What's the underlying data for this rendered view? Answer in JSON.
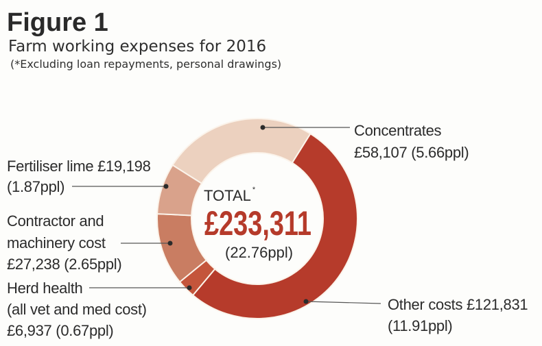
{
  "chart_data": {
    "type": "pie",
    "variant": "donut",
    "title": "Figure 1",
    "subtitle": "Farm working expenses for 2016",
    "note": "(*Excluding loan repayments, personal drawings)",
    "center": {
      "label": "TOTAL",
      "marker": "*",
      "value": "£233,311",
      "sub": "(22.76ppl)"
    },
    "total": 233311,
    "slices": [
      {
        "name": "Other costs",
        "value": 121831,
        "ppl": 11.91,
        "color": "#b63b2b",
        "lines": [
          "Other costs £121,831",
          "(11.91ppl)"
        ]
      },
      {
        "name": "Herd health",
        "value": 6937,
        "ppl": 0.67,
        "color": "#c4553b",
        "lines": [
          "Herd health",
          "(all vet and med cost)",
          "£6,937 (0.67ppl)"
        ]
      },
      {
        "name": "Contractor and machinery cost",
        "value": 27238,
        "ppl": 2.65,
        "color": "#c97d62",
        "lines": [
          "Contractor and",
          "machinery cost",
          "£27,238 (2.65ppl)"
        ]
      },
      {
        "name": "Fertiliser lime",
        "value": 19198,
        "ppl": 1.87,
        "color": "#d9a28b",
        "lines": [
          "Fertiliser lime £19,198",
          "(1.87ppl)"
        ]
      },
      {
        "name": "Concentrates",
        "value": 58107,
        "ppl": 5.66,
        "color": "#ecd1bf",
        "lines": [
          "Concentrates",
          "£58,107 (5.66ppl)"
        ]
      }
    ]
  }
}
